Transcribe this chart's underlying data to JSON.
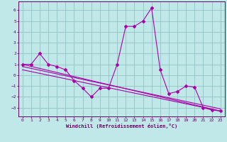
{
  "xlabel": "Windchill (Refroidissement éolien,°C)",
  "bg_color": "#c0e8e8",
  "grid_color": "#98c8c8",
  "line_color": "#aa00aa",
  "spine_color": "#660066",
  "xlim": [
    -0.5,
    23.5
  ],
  "ylim": [
    -3.8,
    6.8
  ],
  "xticks": [
    0,
    1,
    2,
    3,
    4,
    5,
    6,
    7,
    8,
    9,
    10,
    11,
    12,
    13,
    14,
    15,
    16,
    17,
    18,
    19,
    20,
    21,
    22,
    23
  ],
  "yticks": [
    -3,
    -2,
    -1,
    0,
    1,
    2,
    3,
    4,
    5,
    6
  ],
  "series1_x": [
    0,
    1,
    2,
    3,
    4,
    5,
    6,
    7,
    8,
    9,
    10,
    11,
    12,
    13,
    14,
    15,
    16,
    17,
    18,
    19,
    20,
    21,
    22,
    23
  ],
  "series1_y": [
    1.0,
    1.0,
    2.0,
    1.0,
    0.8,
    0.5,
    -0.5,
    -1.2,
    -2.0,
    -1.2,
    -1.2,
    1.0,
    4.5,
    4.5,
    5.0,
    6.2,
    0.5,
    -1.7,
    -1.5,
    -1.0,
    -1.1,
    -3.0,
    -3.2,
    -3.3
  ],
  "line1_x": [
    0,
    23
  ],
  "line1_y": [
    1.0,
    -3.3
  ],
  "line2_x": [
    0,
    23
  ],
  "line2_y": [
    0.5,
    -3.3
  ],
  "line3_x": [
    0,
    23
  ],
  "line3_y": [
    0.8,
    -3.1
  ]
}
